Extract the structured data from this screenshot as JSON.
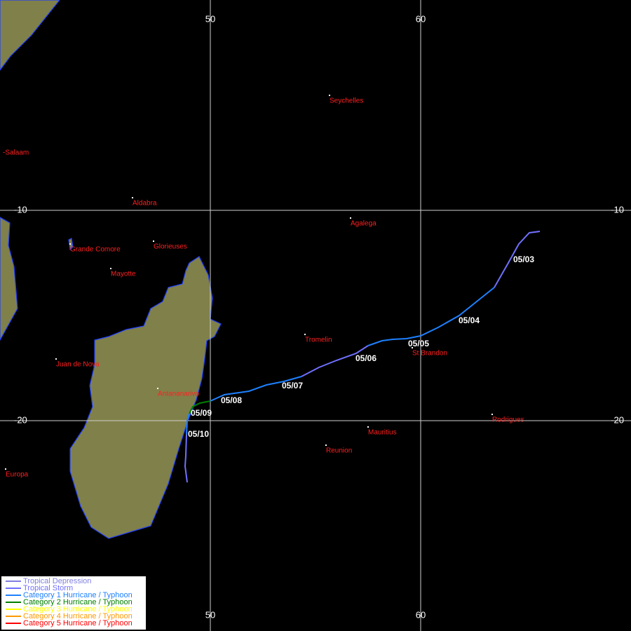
{
  "map": {
    "lon_labels": [
      "50",
      "60"
    ],
    "lat_labels": [
      "-10",
      "-20"
    ],
    "places": [
      "Seychelles",
      "-Salaam",
      "Aldabra",
      "Agalega",
      "Grande Comore",
      "Glorieuses",
      "Mayotte",
      "Tromelin",
      "St Brandon",
      "Juan de Nova",
      "Antananarivo",
      "Mauritius",
      "Reunion",
      "Rodrigues",
      "Europa"
    ],
    "dates": [
      "05/03",
      "05/04",
      "05/05",
      "05/06",
      "05/07",
      "05/08",
      "05/09",
      "05/10"
    ],
    "legend": [
      {
        "name": "Tropical Depression",
        "color": "#8080e0"
      },
      {
        "name": "Tropical Storm",
        "color": "#7070ff"
      },
      {
        "name": "Category 1 Hurricane / Typhoon",
        "color": "#1e80ff"
      },
      {
        "name": "Category 2 Hurricane / Typhoon",
        "color": "#008000"
      },
      {
        "name": "Category 3 Hurricane / Typhoon",
        "color": "#ffff00"
      },
      {
        "name": "Category 4 Hurricane / Typhoon",
        "color": "#ff9900"
      },
      {
        "name": "Category 5 Hurricane / Typhoon",
        "color": "#ff0000"
      }
    ]
  }
}
